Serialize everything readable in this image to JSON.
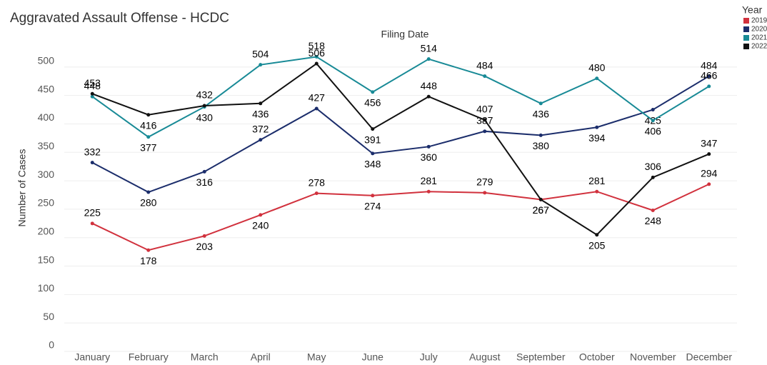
{
  "chart_data": {
    "type": "line",
    "title": "Aggravated Assault Offense - HCDC",
    "x_axis_label": "Filing Date",
    "y_axis_label": "Number of Cases",
    "legend_title": "Year",
    "categories": [
      "January",
      "February",
      "March",
      "April",
      "May",
      "June",
      "July",
      "August",
      "September",
      "October",
      "November",
      "December"
    ],
    "series": [
      {
        "name": "2019",
        "color": "#d1313d",
        "values": [
          225,
          178,
          203,
          240,
          278,
          274,
          281,
          279,
          267,
          281,
          248,
          294
        ]
      },
      {
        "name": "2020",
        "color": "#1b2d6b",
        "values": [
          332,
          280,
          316,
          372,
          427,
          348,
          360,
          387,
          380,
          394,
          425,
          484
        ]
      },
      {
        "name": "2021",
        "color": "#188a96",
        "values": [
          448,
          377,
          430,
          504,
          518,
          456,
          514,
          484,
          436,
          480,
          406,
          466
        ]
      },
      {
        "name": "2022",
        "color": "#111111",
        "values": [
          453,
          416,
          432,
          436,
          506,
          391,
          448,
          407,
          267,
          205,
          306,
          347
        ]
      }
    ],
    "ylim": [
      0,
      545
    ],
    "yticks": [
      0,
      50,
      100,
      150,
      200,
      250,
      300,
      350,
      400,
      450,
      500
    ],
    "grid": true
  }
}
